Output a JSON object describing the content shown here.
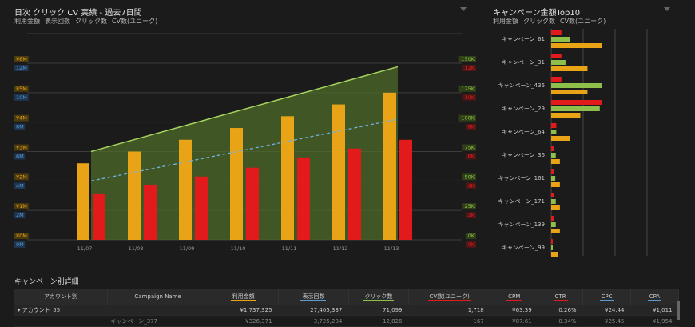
{
  "main_chart": {
    "title": "日次 クリック CV 実績 - 過去7日間",
    "legend": [
      {
        "label": "利用金額",
        "color": "#e8a317"
      },
      {
        "label": "表示回数",
        "color": "#5b9bd5"
      },
      {
        "label": "クリック数",
        "color": "#8dbf4a"
      },
      {
        "label": "CV数(ユニーク)",
        "color": "#e31a1c"
      }
    ],
    "axis_cost_ticks": [
      "¥0M",
      "¥1M",
      "¥2M",
      "¥3M",
      "¥4M",
      "¥5M",
      "¥6M"
    ],
    "axis_imp_ticks": [
      "0M",
      "2M",
      "4M",
      "6M",
      "8M",
      "10M",
      "12M"
    ],
    "axis_click_ticks": [
      "0K",
      "25K",
      "50K",
      "75K",
      "100K",
      "125K",
      "150K"
    ],
    "axis_cv_ticks": [
      "0K",
      "2K",
      "4K",
      "6K",
      "8K",
      "10K",
      "12K"
    ]
  },
  "chart_data": [
    {
      "type": "bar",
      "categories": [
        "11/07",
        "11/08",
        "11/09",
        "11/10",
        "11/11",
        "11/12",
        "11/13"
      ],
      "series": [
        {
          "name": "利用金額",
          "axis": "cost",
          "values": [
            2.6,
            3.0,
            3.4,
            3.8,
            4.2,
            4.6,
            5.0
          ]
        },
        {
          "name": "CV数(ユニーク)",
          "axis": "cv",
          "values": [
            3100,
            3700,
            4300,
            4900,
            5600,
            6200,
            6800
          ]
        },
        {
          "name": "クリック数",
          "axis": "click",
          "type": "area",
          "values": [
            75000,
            87000,
            99000,
            111000,
            123000,
            135000,
            147000
          ]
        },
        {
          "name": "表示回数",
          "axis": "imp",
          "type": "line",
          "values": [
            4.0,
            4.7,
            5.4,
            6.1,
            6.8,
            7.5,
            8.2
          ]
        }
      ],
      "ylim_cost": [
        0,
        6
      ],
      "ylim_imp": [
        0,
        12
      ],
      "ylim_click": [
        0,
        150000
      ],
      "ylim_cv": [
        0,
        12000
      ]
    },
    {
      "type": "bar",
      "title": "キャンペーン金額Top10",
      "categories": [
        "キャンペーン_61",
        "キャンペーン_31",
        "キャンペーン_436",
        "キャンペーン_29",
        "キャンペーン_64",
        "キャンペーン_36",
        "キャンペーン_161",
        "キャンペーン_171",
        "キャンペーン_139",
        "キャンペーン_99"
      ],
      "series": [
        {
          "name": "CV数(ユニーク)",
          "values": [
            0.2,
            0.2,
            0.2,
            1.0,
            0.1,
            0.05,
            0.05,
            0.05,
            0.05,
            0.03
          ]
        },
        {
          "name": "クリック数",
          "values": [
            0.37,
            0.28,
            1.0,
            0.95,
            0.1,
            0.09,
            0.08,
            0.09,
            0.09,
            0.03
          ]
        },
        {
          "name": "利用金額",
          "values": [
            1.0,
            0.71,
            0.71,
            0.57,
            0.36,
            0.17,
            0.17,
            0.17,
            0.17,
            0.13
          ]
        }
      ]
    }
  ],
  "side_chart": {
    "title": "キャンペーン金額Top10",
    "legend": [
      {
        "label": "利用金額",
        "color": "#e8a317"
      },
      {
        "label": "クリック数",
        "color": "#8dbf4a"
      },
      {
        "label": "CV数(ユニーク)",
        "color": "#e31a1c"
      }
    ]
  },
  "table": {
    "title": "キャンペーン別詳細",
    "headers": [
      "アカウント別",
      "Campaign Name",
      "利用金額",
      "表示回数",
      "クリック数",
      "CV数(ユニーク)",
      "CPM",
      "CTR",
      "CPC",
      "CPA"
    ],
    "header_colors": [
      "",
      "",
      "#e8a317",
      "#5b9bd5",
      "#8dbf4a",
      "#e31a1c",
      "#e31a1c",
      "#e31a1c",
      "#5b9bd5",
      "#5b9bd5"
    ],
    "rows": [
      [
        "▾ アカウント_55",
        "",
        "¥1,737,325",
        "27,405,337",
        "71,099",
        "1,718",
        "¥63.39",
        "0.26%",
        "¥24.44",
        "¥1,011"
      ],
      [
        "",
        "キャンペーン_377",
        "¥326,371",
        "3,725,204",
        "12,826",
        "167",
        "¥87.61",
        "0.34%",
        "¥25.45",
        "¥1,954"
      ]
    ]
  }
}
